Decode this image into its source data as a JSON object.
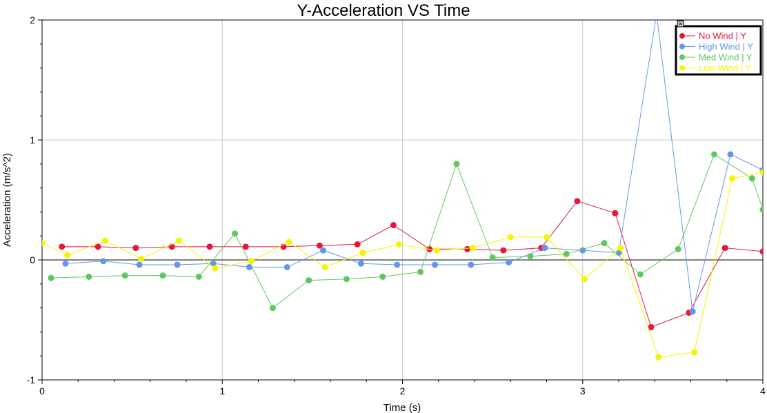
{
  "chart_data": {
    "type": "line",
    "title": "Y-Acceleration VS Time",
    "xlabel": "Time (s)",
    "ylabel": "Acceleration (m/s^2)",
    "xlim": [
      0,
      4
    ],
    "ylim": [
      -1,
      2
    ],
    "x_ticks": [
      "0",
      "1",
      "2",
      "3",
      "4"
    ],
    "y_ticks": [
      "-1",
      "0",
      "1",
      "2"
    ],
    "grid": true,
    "legend_position": "top-right",
    "legend_close_glyph": "×",
    "series": [
      {
        "name": "No Wind | Y",
        "color": "#e8163c",
        "points": [
          [
            0.11,
            0.11
          ],
          [
            0.31,
            0.11
          ],
          [
            0.52,
            0.1
          ],
          [
            0.72,
            0.11
          ],
          [
            0.93,
            0.11
          ],
          [
            1.13,
            0.11
          ],
          [
            1.34,
            0.11
          ],
          [
            1.54,
            0.12
          ],
          [
            1.75,
            0.13
          ],
          [
            1.95,
            0.29
          ],
          [
            2.15,
            0.09
          ],
          [
            2.36,
            0.09
          ],
          [
            2.56,
            0.08
          ],
          [
            2.77,
            0.1
          ],
          [
            2.97,
            0.49
          ],
          [
            3.18,
            0.39
          ],
          [
            3.38,
            -0.56
          ],
          [
            3.59,
            -0.44
          ],
          [
            3.79,
            0.1
          ],
          [
            4.0,
            0.07
          ]
        ]
      },
      {
        "name": "High Wind | Y",
        "color": "#6495ed",
        "points": [
          [
            0.13,
            -0.03
          ],
          [
            0.34,
            -0.01
          ],
          [
            0.54,
            -0.04
          ],
          [
            0.75,
            -0.04
          ],
          [
            0.95,
            -0.03
          ],
          [
            1.15,
            -0.06
          ],
          [
            1.36,
            -0.06
          ],
          [
            1.56,
            0.08
          ],
          [
            1.77,
            -0.03
          ],
          [
            1.97,
            -0.04
          ],
          [
            2.18,
            -0.04
          ],
          [
            2.38,
            -0.04
          ],
          [
            2.59,
            -0.02
          ],
          [
            2.79,
            0.1
          ],
          [
            3.0,
            0.08
          ],
          [
            3.2,
            0.06
          ],
          [
            3.41,
            2.05
          ],
          [
            3.61,
            -0.43
          ],
          [
            3.82,
            0.88
          ],
          [
            4.0,
            0.75
          ]
        ]
      },
      {
        "name": "Med Wind | Y",
        "color": "#5fc75f",
        "points": [
          [
            0.05,
            -0.15
          ],
          [
            0.26,
            -0.14
          ],
          [
            0.46,
            -0.13
          ],
          [
            0.67,
            -0.13
          ],
          [
            0.87,
            -0.14
          ],
          [
            1.07,
            0.22
          ],
          [
            1.28,
            -0.4
          ],
          [
            1.48,
            -0.17
          ],
          [
            1.69,
            -0.16
          ],
          [
            1.89,
            -0.14
          ],
          [
            2.1,
            -0.1
          ],
          [
            2.3,
            0.8
          ],
          [
            2.5,
            0.02
          ],
          [
            2.71,
            0.03
          ],
          [
            2.91,
            0.05
          ],
          [
            3.12,
            0.14
          ],
          [
            3.32,
            -0.12
          ],
          [
            3.53,
            0.09
          ],
          [
            3.73,
            0.88
          ],
          [
            3.94,
            0.68
          ],
          [
            4.0,
            0.42
          ]
        ]
      },
      {
        "name": "Low Wind | Y",
        "color": "#f5f500",
        "points": [
          [
            0.0,
            0.14
          ],
          [
            0.14,
            0.04
          ],
          [
            0.35,
            0.16
          ],
          [
            0.55,
            0.01
          ],
          [
            0.76,
            0.16
          ],
          [
            0.96,
            -0.07
          ],
          [
            1.16,
            -0.01
          ],
          [
            1.37,
            0.15
          ],
          [
            1.57,
            -0.06
          ],
          [
            1.78,
            0.06
          ],
          [
            1.98,
            0.13
          ],
          [
            2.19,
            0.08
          ],
          [
            2.39,
            0.1
          ],
          [
            2.6,
            0.19
          ],
          [
            2.8,
            0.19
          ],
          [
            3.01,
            -0.16
          ],
          [
            3.21,
            0.1
          ],
          [
            3.42,
            -0.81
          ],
          [
            3.62,
            -0.77
          ],
          [
            3.83,
            0.68
          ],
          [
            4.0,
            0.73
          ]
        ]
      }
    ]
  }
}
